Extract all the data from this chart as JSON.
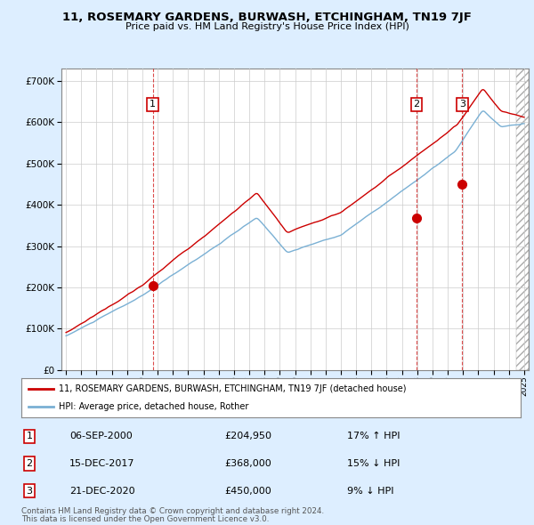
{
  "title": "11, ROSEMARY GARDENS, BURWASH, ETCHINGHAM, TN19 7JF",
  "subtitle": "Price paid vs. HM Land Registry's House Price Index (HPI)",
  "legend_line1": "11, ROSEMARY GARDENS, BURWASH, ETCHINGHAM, TN19 7JF (detached house)",
  "legend_line2": "HPI: Average price, detached house, Rother",
  "footnote1": "Contains HM Land Registry data © Crown copyright and database right 2024.",
  "footnote2": "This data is licensed under the Open Government Licence v3.0.",
  "transactions": [
    {
      "num": "1",
      "date": "06-SEP-2000",
      "price": "£204,950",
      "pct": "17% ↑ HPI",
      "year_x": 2000.68,
      "price_val": 204950
    },
    {
      "num": "2",
      "date": "15-DEC-2017",
      "price": "£368,000",
      "pct": "15% ↓ HPI",
      "year_x": 2017.95,
      "price_val": 368000
    },
    {
      "num": "3",
      "date": "21-DEC-2020",
      "price": "£450,000",
      "pct": "9% ↓ HPI",
      "year_x": 2020.95,
      "price_val": 450000
    }
  ],
  "sold_color": "#cc0000",
  "hpi_color": "#7ab0d4",
  "background_color": "#ddeeff",
  "plot_bg_color": "#ddeeff",
  "vline_color": "#cc0000",
  "marker_color": "#cc0000",
  "ylim": [
    0,
    730000
  ],
  "yticks": [
    0,
    100000,
    200000,
    300000,
    400000,
    500000,
    600000,
    700000
  ],
  "xlim_start": 1994.7,
  "xlim_end": 2025.3,
  "xtick_years": [
    1995,
    1996,
    1997,
    1998,
    1999,
    2000,
    2001,
    2002,
    2003,
    2004,
    2005,
    2006,
    2007,
    2008,
    2009,
    2010,
    2011,
    2012,
    2013,
    2014,
    2015,
    2016,
    2017,
    2018,
    2019,
    2020,
    2021,
    2022,
    2023,
    2024,
    2025
  ]
}
